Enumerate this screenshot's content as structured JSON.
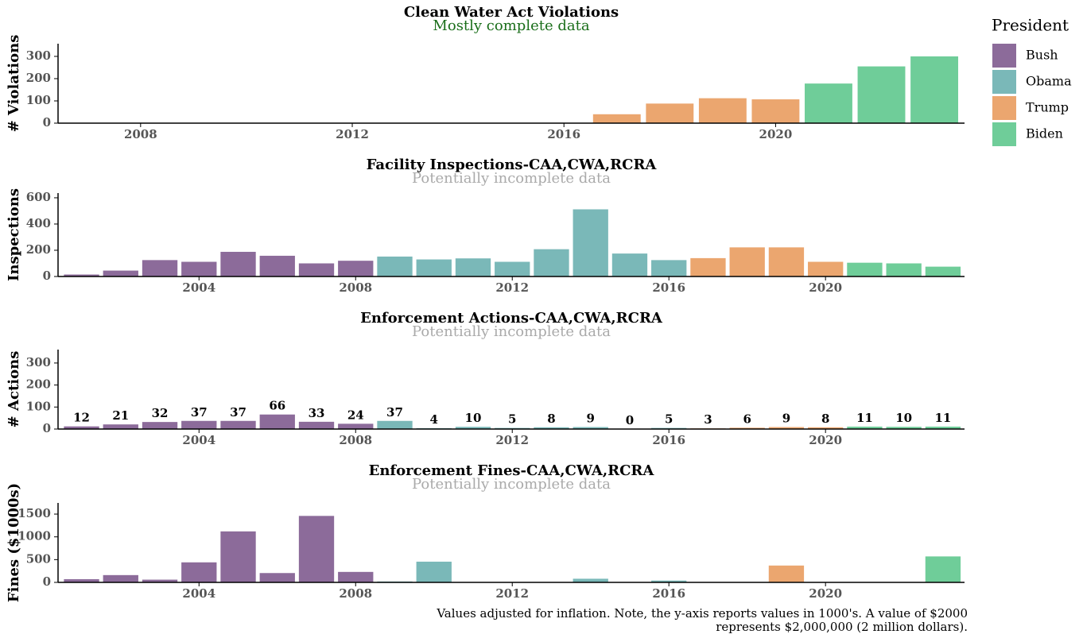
{
  "chart_data": [
    {
      "type": "bar",
      "title": "Clean Water Act Violations",
      "subtitle": "Mostly complete data",
      "subtitle_color": "#1a6e1a",
      "ylabel": "# Violations",
      "x": [
        2017,
        2018,
        2019,
        2020,
        2021,
        2022,
        2023
      ],
      "values": [
        40,
        88,
        112,
        107,
        178,
        255,
        300
      ],
      "colors": [
        "#eba66f",
        "#eba66f",
        "#eba66f",
        "#eba66f",
        "#6fcd99",
        "#6fcd99",
        "#6fcd99"
      ],
      "xlim": [
        2006.44,
        2023.57
      ],
      "xticks": [
        2008,
        2012,
        2016,
        2020
      ],
      "ylim": [
        0,
        357
      ],
      "yticks": [
        0,
        100,
        200,
        300
      ]
    },
    {
      "type": "bar",
      "title": "Facility Inspections-CAA,CWA,RCRA",
      "subtitle": "Potentially incomplete data",
      "subtitle_color": "#aaaaaa",
      "ylabel": "Inspections",
      "x": [
        2001,
        2002,
        2003,
        2004,
        2005,
        2006,
        2007,
        2008,
        2009,
        2010,
        2011,
        2012,
        2013,
        2014,
        2015,
        2016,
        2017,
        2018,
        2019,
        2020,
        2021,
        2022,
        2023
      ],
      "values": [
        15,
        45,
        125,
        112,
        188,
        158,
        100,
        120,
        152,
        130,
        138,
        112,
        208,
        512,
        175,
        125,
        140,
        222,
        222,
        112,
        105,
        100,
        75
      ],
      "colors": [
        "#8c6b9a",
        "#8c6b9a",
        "#8c6b9a",
        "#8c6b9a",
        "#8c6b9a",
        "#8c6b9a",
        "#8c6b9a",
        "#8c6b9a",
        "#7ab8b8",
        "#7ab8b8",
        "#7ab8b8",
        "#7ab8b8",
        "#7ab8b8",
        "#7ab8b8",
        "#7ab8b8",
        "#7ab8b8",
        "#eba66f",
        "#eba66f",
        "#eba66f",
        "#eba66f",
        "#6fcd99",
        "#6fcd99",
        "#6fcd99"
      ],
      "xlim": [
        2000.4,
        2023.55
      ],
      "xticks": [
        2004,
        2008,
        2012,
        2016,
        2020
      ],
      "ylim": [
        0,
        636
      ],
      "yticks": [
        0,
        200,
        400,
        600
      ]
    },
    {
      "type": "bar",
      "title": "Enforcement Actions-CAA,CWA,RCRA",
      "subtitle": "Potentially incomplete data",
      "subtitle_color": "#aaaaaa",
      "ylabel": "# Actions",
      "x": [
        2001,
        2002,
        2003,
        2004,
        2005,
        2006,
        2007,
        2008,
        2009,
        2010,
        2011,
        2012,
        2013,
        2014,
        2015,
        2016,
        2017,
        2018,
        2019,
        2020,
        2021,
        2022,
        2023
      ],
      "values": [
        12,
        21,
        32,
        37,
        37,
        66,
        33,
        24,
        37,
        4,
        10,
        5,
        8,
        9,
        0,
        5,
        3,
        6,
        9,
        8,
        11,
        10,
        11
      ],
      "colors": [
        "#8c6b9a",
        "#8c6b9a",
        "#8c6b9a",
        "#8c6b9a",
        "#8c6b9a",
        "#8c6b9a",
        "#8c6b9a",
        "#8c6b9a",
        "#7ab8b8",
        "#7ab8b8",
        "#7ab8b8",
        "#7ab8b8",
        "#7ab8b8",
        "#7ab8b8",
        "#7ab8b8",
        "#7ab8b8",
        "#eba66f",
        "#eba66f",
        "#eba66f",
        "#eba66f",
        "#6fcd99",
        "#6fcd99",
        "#6fcd99"
      ],
      "data_labels": true,
      "xlim": [
        2000.4,
        2023.55
      ],
      "xticks": [
        2004,
        2008,
        2012,
        2016,
        2020
      ],
      "ylim": [
        0,
        361
      ],
      "yticks": [
        0,
        100,
        200,
        300
      ]
    },
    {
      "type": "bar",
      "title": "Enforcement Fines-CAA,CWA,RCRA",
      "subtitle": "Potentially incomplete data",
      "subtitle_color": "#aaaaaa",
      "ylabel": "Fines ($1000s)",
      "x": [
        2001,
        2002,
        2003,
        2004,
        2005,
        2006,
        2007,
        2008,
        2009,
        2010,
        2011,
        2012,
        2013,
        2014,
        2015,
        2016,
        2017,
        2018,
        2019,
        2020,
        2021,
        2022,
        2023
      ],
      "values": [
        70,
        160,
        60,
        440,
        1120,
        205,
        1460,
        230,
        20,
        455,
        0,
        0,
        0,
        80,
        0,
        40,
        0,
        0,
        370,
        0,
        0,
        0,
        570
      ],
      "colors": [
        "#8c6b9a",
        "#8c6b9a",
        "#8c6b9a",
        "#8c6b9a",
        "#8c6b9a",
        "#8c6b9a",
        "#8c6b9a",
        "#8c6b9a",
        "#7ab8b8",
        "#7ab8b8",
        "#7ab8b8",
        "#7ab8b8",
        "#7ab8b8",
        "#7ab8b8",
        "#7ab8b8",
        "#7ab8b8",
        "#eba66f",
        "#eba66f",
        "#eba66f",
        "#eba66f",
        "#6fcd99",
        "#6fcd99",
        "#6fcd99"
      ],
      "xlim": [
        2000.4,
        2023.55
      ],
      "xticks": [
        2004,
        2008,
        2012,
        2016,
        2020
      ],
      "ylim": [
        0,
        1745
      ],
      "yticks": [
        0,
        500,
        1000,
        1500
      ]
    }
  ],
  "legend": {
    "title": "President",
    "items": [
      {
        "name": "Bush",
        "color": "#8c6b9a"
      },
      {
        "name": "Obama",
        "color": "#7ab8b8"
      },
      {
        "name": "Trump",
        "color": "#eba66f"
      },
      {
        "name": "Biden",
        "color": "#6fcd99"
      }
    ]
  },
  "note": [
    "Values adjusted for inflation. Note, the y-axis reports values in 1000's. A value of $2000",
    "represents $2,000,000 (2 million dollars)."
  ]
}
